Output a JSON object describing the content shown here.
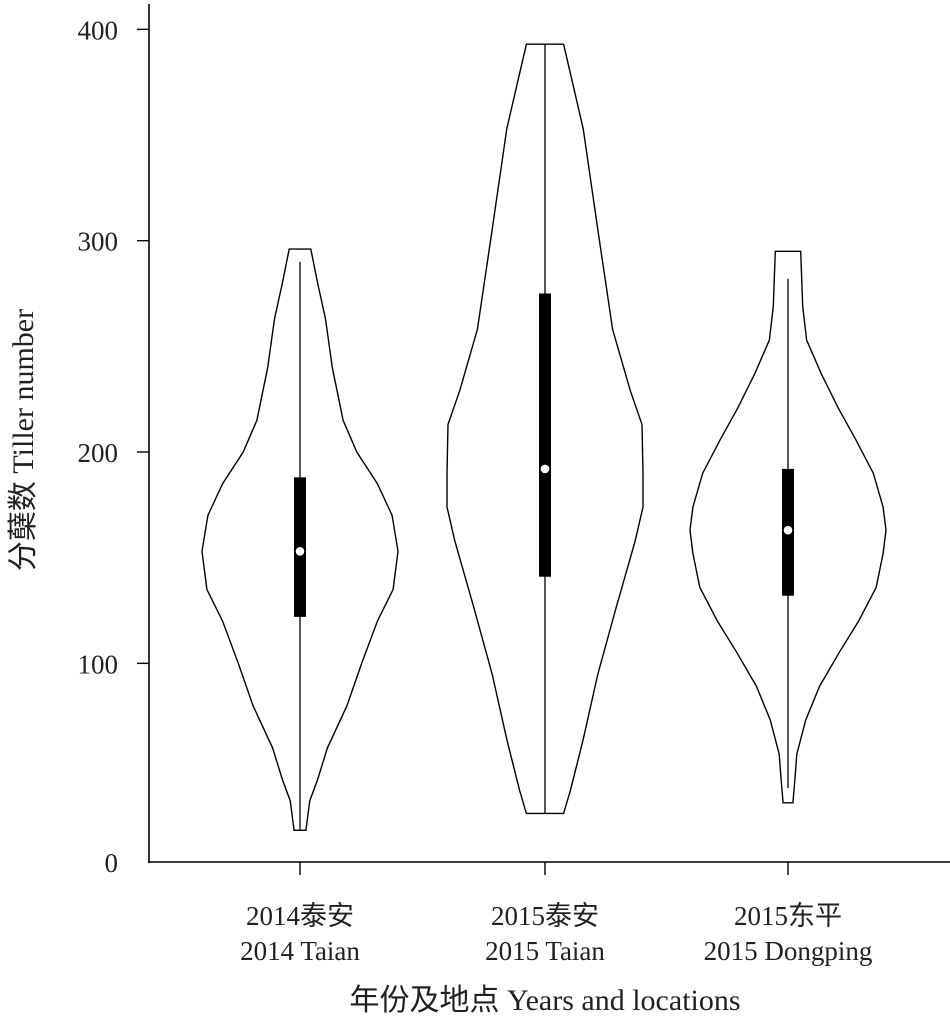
{
  "chart_data": {
    "type": "violin",
    "title": "",
    "xlabel": "年份及地点 Years and locations",
    "ylabel": "分蘖数 Tiller number",
    "ylim": [
      6,
      412
    ],
    "yticks": [
      0,
      100,
      200,
      300,
      400
    ],
    "ytick_labels": [
      "0",
      "100",
      "200",
      "300",
      "400"
    ],
    "grid": false,
    "colors": {
      "outline": "#000000",
      "box": "#000000",
      "median_dot": "#ffffff"
    },
    "categories": [
      {
        "line1": "2014泰安",
        "line2": "2014 Taian"
      },
      {
        "line1": "2015泰安",
        "line2": "2015 Taian"
      },
      {
        "line1": "2015东平",
        "line2": "2015 Dongping"
      }
    ],
    "violins": [
      {
        "min": 21,
        "max": 296,
        "whisker_low": 21,
        "whisker_high": 290,
        "q1": 122,
        "median": 153,
        "q3": 188,
        "density": [
          [
            21,
            0.06
          ],
          [
            35,
            0.1
          ],
          [
            45,
            0.18
          ],
          [
            60,
            0.28
          ],
          [
            80,
            0.48
          ],
          [
            100,
            0.63
          ],
          [
            120,
            0.79
          ],
          [
            135,
            0.95
          ],
          [
            153,
            1.0
          ],
          [
            170,
            0.94
          ],
          [
            185,
            0.79
          ],
          [
            200,
            0.58
          ],
          [
            215,
            0.44
          ],
          [
            240,
            0.33
          ],
          [
            263,
            0.26
          ],
          [
            280,
            0.18
          ],
          [
            296,
            0.11
          ]
        ]
      },
      {
        "min": 29,
        "max": 393,
        "whisker_low": 29,
        "whisker_high": 393,
        "q1": 141,
        "median": 192,
        "q3": 275,
        "density": [
          [
            29,
            0.19
          ],
          [
            40,
            0.26
          ],
          [
            64,
            0.39
          ],
          [
            95,
            0.54
          ],
          [
            127,
            0.73
          ],
          [
            158,
            0.92
          ],
          [
            174,
            1.0
          ],
          [
            190,
            1.0
          ],
          [
            213,
            0.99
          ],
          [
            229,
            0.87
          ],
          [
            258,
            0.69
          ],
          [
            305,
            0.54
          ],
          [
            353,
            0.39
          ],
          [
            393,
            0.19
          ]
        ]
      },
      {
        "min": 34,
        "max": 295,
        "whisker_low": 41,
        "whisker_high": 282,
        "q1": 132,
        "median": 163,
        "q3": 192,
        "density": [
          [
            34,
            0.05
          ],
          [
            45,
            0.07
          ],
          [
            57,
            0.09
          ],
          [
            73,
            0.18
          ],
          [
            89,
            0.32
          ],
          [
            105,
            0.52
          ],
          [
            120,
            0.72
          ],
          [
            136,
            0.9
          ],
          [
            152,
            0.97
          ],
          [
            163,
            1.0
          ],
          [
            174,
            0.97
          ],
          [
            190,
            0.87
          ],
          [
            206,
            0.69
          ],
          [
            221,
            0.51
          ],
          [
            237,
            0.34
          ],
          [
            253,
            0.19
          ],
          [
            269,
            0.15
          ],
          [
            295,
            0.13
          ]
        ]
      }
    ]
  }
}
